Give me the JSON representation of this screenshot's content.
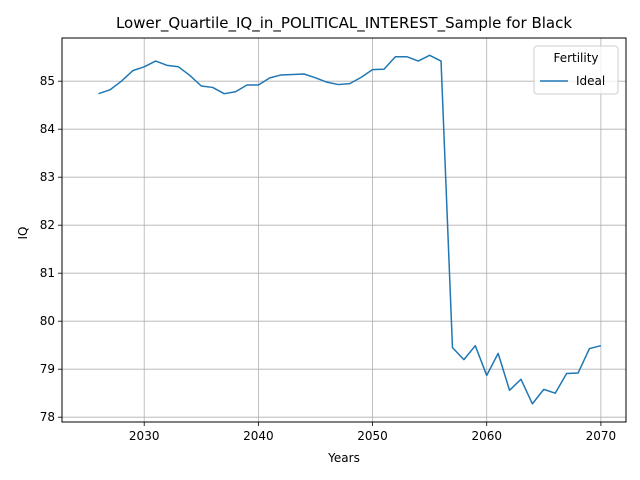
{
  "chart_data": {
    "type": "line",
    "title": "Lower_Quartile_IQ_in_POLITICAL_INTEREST_Sample for Black",
    "xlabel": "Years",
    "ylabel": "IQ",
    "xlim": [
      2022.8,
      2072.2
    ],
    "ylim": [
      77.9,
      85.9
    ],
    "x_ticks": [
      2030,
      2040,
      2050,
      2060,
      2070
    ],
    "y_ticks": [
      78,
      79,
      80,
      81,
      82,
      83,
      84,
      85
    ],
    "grid": true,
    "legend": {
      "title": "Fertility",
      "position": "top-right"
    },
    "series": [
      {
        "name": "Ideal",
        "color": "#1f77b4",
        "x": [
          2026,
          2027,
          2028,
          2029,
          2030,
          2031,
          2032,
          2033,
          2034,
          2035,
          2036,
          2037,
          2038,
          2039,
          2040,
          2041,
          2042,
          2043,
          2044,
          2045,
          2046,
          2047,
          2048,
          2049,
          2050,
          2051,
          2052,
          2053,
          2054,
          2055,
          2056,
          2057,
          2058,
          2059,
          2060,
          2061,
          2062,
          2063,
          2064,
          2065,
          2066,
          2067,
          2068,
          2069,
          2070
        ],
        "values": [
          84.74,
          84.82,
          85.0,
          85.22,
          85.3,
          85.42,
          85.33,
          85.3,
          85.12,
          84.9,
          84.87,
          84.74,
          84.78,
          84.92,
          84.92,
          85.07,
          85.13,
          85.14,
          85.15,
          85.07,
          84.98,
          84.93,
          84.95,
          85.08,
          85.24,
          85.25,
          85.51,
          85.51,
          85.42,
          85.54,
          85.42,
          79.45,
          79.2,
          79.49,
          78.87,
          79.33,
          78.56,
          78.79,
          78.28,
          78.58,
          78.5,
          78.91,
          78.92,
          79.43,
          79.49
        ]
      }
    ]
  }
}
